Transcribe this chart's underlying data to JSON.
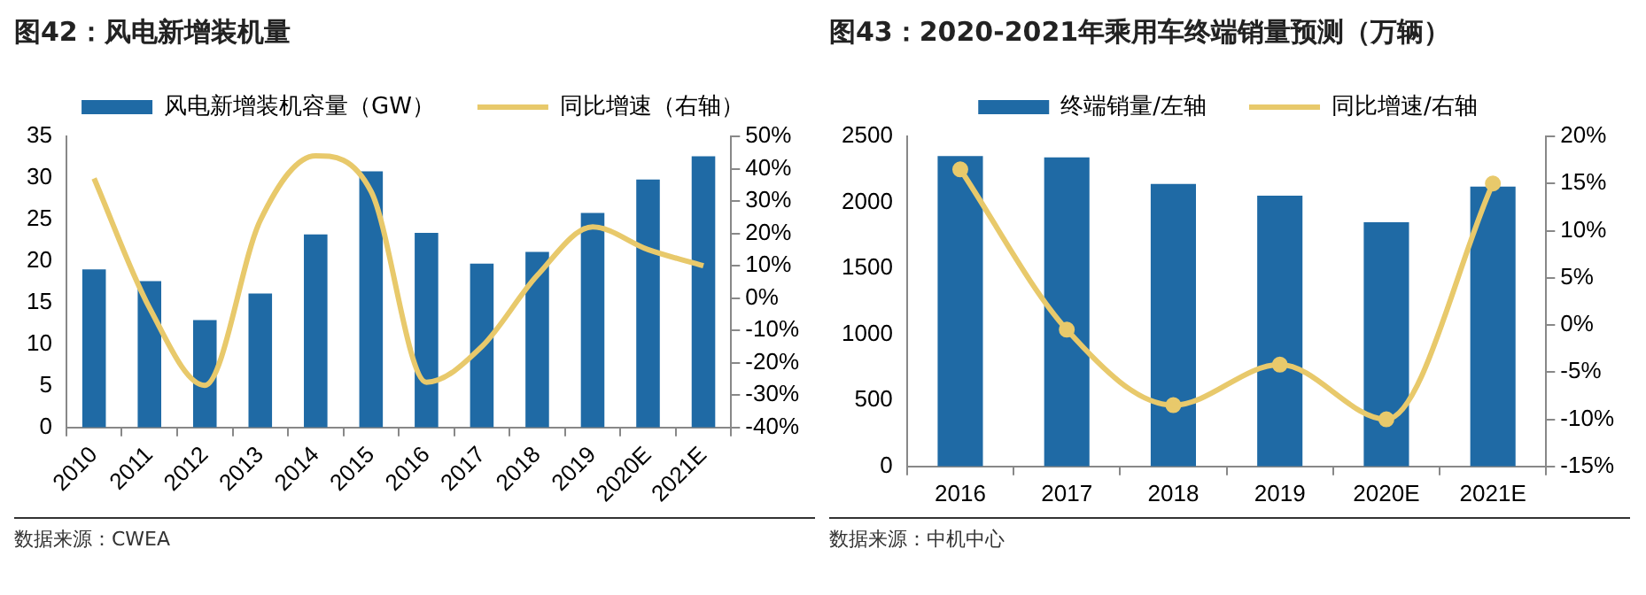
{
  "chart_data": [
    {
      "type": "bar",
      "title": "图42：风电新增装机量",
      "categories": [
        "2010",
        "2011",
        "2012",
        "2013",
        "2014",
        "2015",
        "2016",
        "2017",
        "2018",
        "2019",
        "2020E",
        "2021E"
      ],
      "series": [
        {
          "name": "风电新增装机容量（GW）",
          "color": "#1f6aa5",
          "values": [
            19,
            17.6,
            12.9,
            16.1,
            23.2,
            30.8,
            23.4,
            19.7,
            21.1,
            25.8,
            29.8,
            32.6
          ]
        },
        {
          "name": "同比增速（右轴）",
          "color": "#e8c96b",
          "type": "line",
          "axis": "y2",
          "values": [
            37,
            -3,
            -27,
            24,
            44,
            33,
            -26,
            -15,
            7,
            22,
            15,
            10
          ]
        }
      ],
      "ylim": [
        0,
        35
      ],
      "yticks": [
        0,
        5,
        10,
        15,
        20,
        25,
        30,
        35
      ],
      "y2lim": [
        -40,
        50
      ],
      "y2ticks": [
        {
          "value": -40,
          "label": "-40%"
        },
        {
          "value": -30,
          "label": "-30%"
        },
        {
          "value": -20,
          "label": "-20%"
        },
        {
          "value": -10,
          "label": "-10%"
        },
        {
          "value": 0,
          "label": "0%"
        },
        {
          "value": 10,
          "label": "10%"
        },
        {
          "value": 20,
          "label": "20%"
        },
        {
          "value": 30,
          "label": "30%"
        },
        {
          "value": 40,
          "label": "40%"
        },
        {
          "value": 50,
          "label": "50%"
        }
      ],
      "grid": false,
      "legend": "top",
      "marker": "none",
      "line_style": "solid",
      "annotations": [
        "数据来源：CWEA"
      ]
    },
    {
      "type": "bar",
      "title": "图43：2020-2021年乘用车终端销量预测（万辆）",
      "categories": [
        "2016",
        "2017",
        "2018",
        "2019",
        "2020E",
        "2021E"
      ],
      "series": [
        {
          "name": "终端销量/左轴",
          "color": "#1f6aa5",
          "values": [
            2350,
            2340,
            2140,
            2050,
            1850,
            2120
          ]
        },
        {
          "name": "同比增速/右轴",
          "color": "#e8c96b",
          "type": "line",
          "axis": "y2",
          "values": [
            16.5,
            -0.5,
            -8.5,
            -4.2,
            -10,
            15
          ]
        }
      ],
      "ylim": [
        0,
        2500
      ],
      "yticks": [
        0,
        500,
        1000,
        1500,
        2000,
        2500
      ],
      "y2lim": [
        -15,
        20
      ],
      "y2ticks": [
        {
          "value": -15,
          "label": "-15%"
        },
        {
          "value": -10,
          "label": "-10%"
        },
        {
          "value": -5,
          "label": "-5%"
        },
        {
          "value": 0,
          "label": "0%"
        },
        {
          "value": 5,
          "label": "5%"
        },
        {
          "value": 10,
          "label": "10%"
        },
        {
          "value": 15,
          "label": "15%"
        },
        {
          "value": 20,
          "label": "20%"
        }
      ],
      "grid": false,
      "legend": "top",
      "marker": "circle",
      "line_style": "solid",
      "annotations": [
        "数据来源：中机中心"
      ]
    }
  ]
}
